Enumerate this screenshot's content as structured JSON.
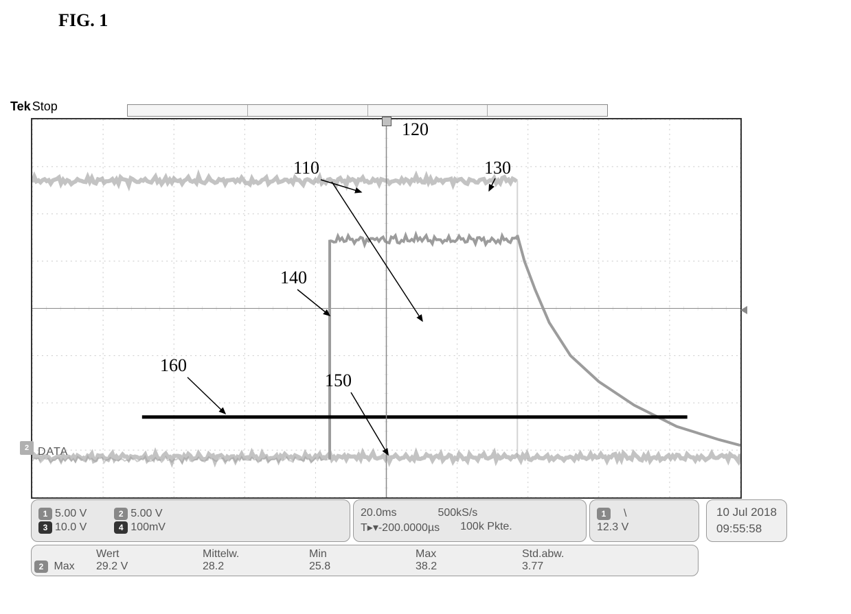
{
  "figure": {
    "label": "FIG. 1"
  },
  "header": {
    "brand": "Tek",
    "status": "Stop"
  },
  "display": {
    "width_div": 10,
    "height_div": 8,
    "minor_per_major": 5,
    "background": "#ffffff",
    "grid_major": "#c8c8c8",
    "grid_minor": "#e8e8e8",
    "center_axis": "#888888",
    "noise_stroke": "#a9a9a9",
    "trace2_stroke": "#9c9c9c",
    "threshold_stroke": "#000000",
    "noise_width": 6,
    "trace2_width": 4,
    "threshold_width": 5,
    "trigger_x_div": 5.0,
    "trace_top": {
      "baseline_div": 1.3,
      "end_div": 6.85
    },
    "trace_mid": {
      "start_div": 4.2,
      "rise_from_div": 7.2,
      "level_div": 2.55,
      "end_div": 6.85,
      "decay_points_div": [
        [
          6.85,
          2.45
        ],
        [
          6.95,
          3.0
        ],
        [
          7.1,
          3.6
        ],
        [
          7.3,
          4.3
        ],
        [
          7.6,
          5.0
        ],
        [
          8.0,
          5.55
        ],
        [
          8.5,
          6.05
        ],
        [
          9.1,
          6.5
        ],
        [
          9.7,
          6.78
        ],
        [
          10.0,
          6.9
        ]
      ]
    },
    "trace_bot": {
      "baseline_div": 7.15
    },
    "threshold_line": {
      "y_div": 6.3,
      "x0_div": 1.55,
      "x1_div": 9.25
    },
    "data_badge": {
      "number": "2",
      "label": "DATA"
    }
  },
  "annotations": {
    "a110": "110",
    "a120": "120",
    "a130": "130",
    "a140": "140",
    "a150": "150",
    "a160": "160"
  },
  "channels": {
    "ch1": {
      "num": "1",
      "value": "5.00 V"
    },
    "ch2": {
      "num": "2",
      "value": "5.00 V"
    },
    "ch3": {
      "num": "3",
      "value": "10.0 V"
    },
    "ch4": {
      "num": "4",
      "value": "100mV"
    }
  },
  "timebase": {
    "tdiv": "20.0ms",
    "delay_label": "T",
    "delay_value": "-200.0000µs",
    "sample_rate": "500kS/s",
    "points": "100k Pkte.",
    "trig_ch": "1",
    "trig_slope": "\\",
    "trig_level": "12.3 V"
  },
  "stats": {
    "stat_ch": "2",
    "stat_name": "Max",
    "h_wert": "Wert",
    "h_mittel": "Mittelw.",
    "h_min": "Min",
    "h_max": "Max",
    "h_std": "Std.abw.",
    "v_wert": "29.2 V",
    "v_mittel": "28.2",
    "v_min": "25.8",
    "v_max": "38.2",
    "v_std": "3.77"
  },
  "timestamp": {
    "date": "10 Jul 2018",
    "time": "09:55:58"
  },
  "colors": {
    "panel_text": "#555555",
    "badge_gray": "#888888",
    "badge_dark": "#333333"
  }
}
